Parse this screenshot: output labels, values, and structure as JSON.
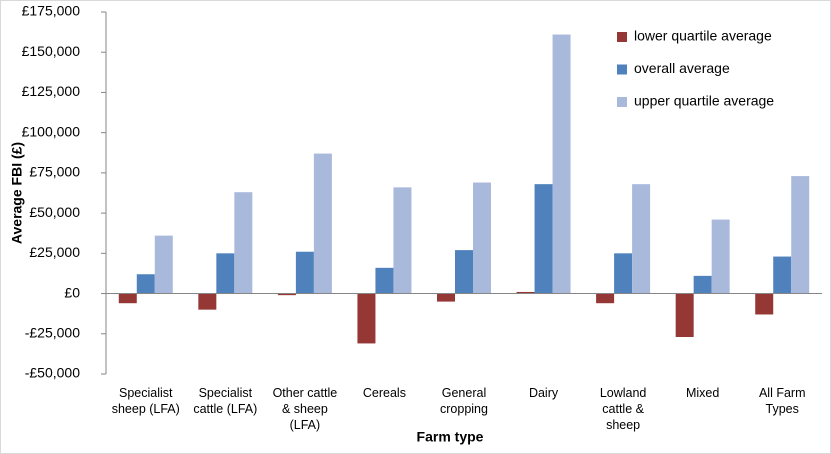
{
  "chart_data": {
    "type": "bar",
    "x_label": "Farm type",
    "y_label": "Average FBI (£)",
    "categories": [
      "Specialist sheep (LFA)",
      "Specialist cattle (LFA)",
      "Other cattle & sheep (LFA)",
      "Cereals",
      "General cropping",
      "Dairy",
      "Lowland cattle & sheep",
      "Mixed",
      "All Farm Types"
    ],
    "series": [
      {
        "name": "lower quartile average",
        "color": "#953735",
        "values": [
          -6000,
          -10000,
          -1000,
          -31000,
          -5000,
          1000,
          -6000,
          -27000,
          -13000
        ]
      },
      {
        "name": "overall average",
        "color": "#4f81bd",
        "values": [
          12000,
          25000,
          26000,
          16000,
          27000,
          68000,
          25000,
          11000,
          23000
        ]
      },
      {
        "name": "upper quartile average",
        "color": "#a9b9dc",
        "values": [
          36000,
          63000,
          87000,
          66000,
          69000,
          161000,
          68000,
          46000,
          73000
        ]
      }
    ],
    "ylim": [
      -50000,
      175000
    ],
    "yticks": [
      {
        "value": -50000,
        "label": "-£50,000"
      },
      {
        "value": -25000,
        "label": "-£25,000"
      },
      {
        "value": 0,
        "label": "£0"
      },
      {
        "value": 25000,
        "label": "£25,000"
      },
      {
        "value": 50000,
        "label": "£50,000"
      },
      {
        "value": 75000,
        "label": "£75,000"
      },
      {
        "value": 100000,
        "label": "£100,000"
      },
      {
        "value": 125000,
        "label": "£125,000"
      },
      {
        "value": 150000,
        "label": "£150,000"
      },
      {
        "value": 175000,
        "label": "£175,000"
      }
    ],
    "grid": false,
    "legend": "upper-right"
  }
}
